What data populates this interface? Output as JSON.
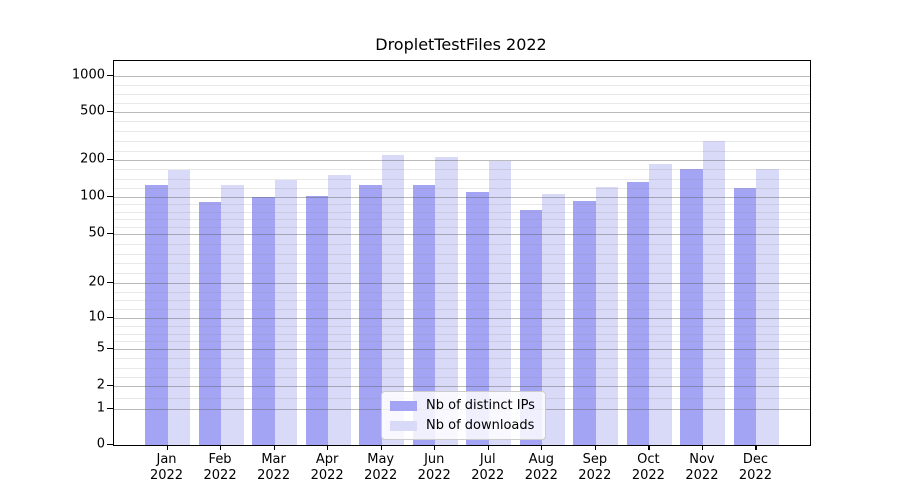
{
  "title": "DropletTestFiles 2022",
  "chart_data": {
    "type": "bar",
    "title": "DropletTestFiles 2022",
    "categories": [
      "Jan 2022",
      "Feb 2022",
      "Mar 2022",
      "Apr 2022",
      "May 2022",
      "Jun 2022",
      "Jul 2022",
      "Aug 2022",
      "Sep 2022",
      "Oct 2022",
      "Nov 2022",
      "Dec 2022"
    ],
    "series": [
      {
        "name": "Nb of distinct IPs",
        "color": "#a4a4f4",
        "values": [
          126,
          90,
          100,
          102,
          125,
          124,
          109,
          78,
          92,
          132,
          170,
          117
        ]
      },
      {
        "name": "Nb of downloads",
        "color": "#d9d9f8",
        "values": [
          166,
          125,
          138,
          150,
          222,
          211,
          198,
          105,
          120,
          186,
          290,
          170
        ]
      }
    ],
    "xlabel": "",
    "ylabel": "",
    "y_scale": "symlog",
    "y_ticks": [
      0,
      1,
      2,
      5,
      10,
      20,
      50,
      100,
      200,
      500,
      1000
    ],
    "y_tick_labels": [
      "0",
      "1",
      "2",
      "5",
      "10",
      "20",
      "50",
      "100",
      "200",
      "500",
      "1000"
    ],
    "ylim": [
      0,
      1400
    ],
    "grid": true,
    "legend_position": "lower center"
  }
}
